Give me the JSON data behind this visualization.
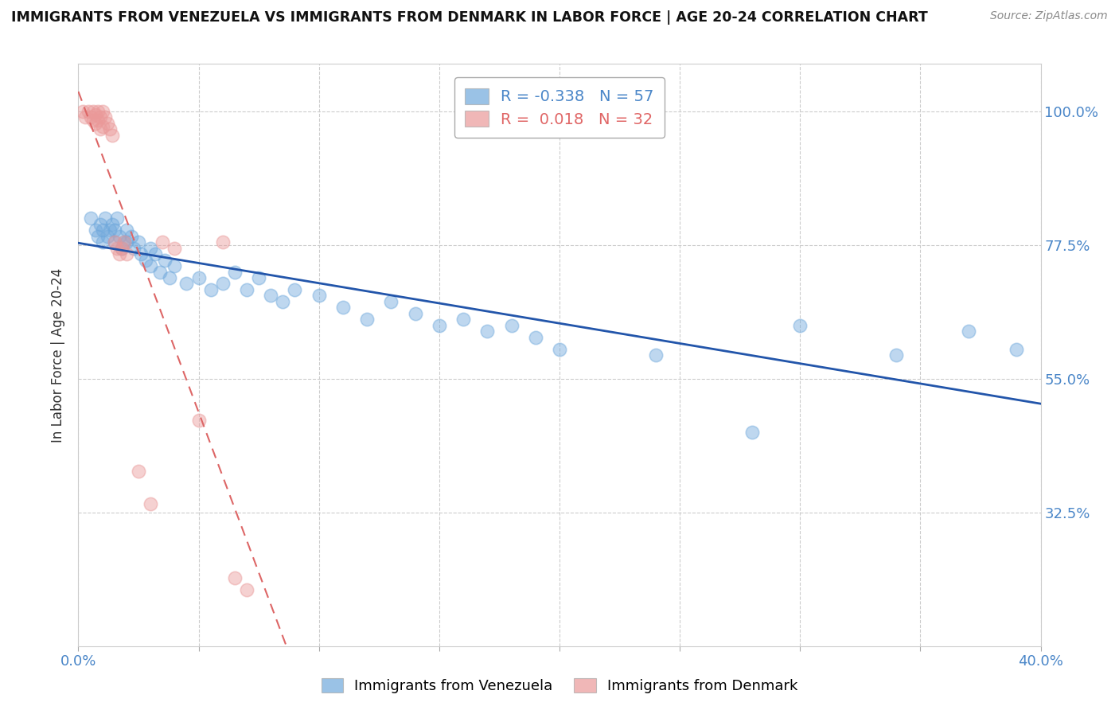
{
  "title": "IMMIGRANTS FROM VENEZUELA VS IMMIGRANTS FROM DENMARK IN LABOR FORCE | AGE 20-24 CORRELATION CHART",
  "source": "Source: ZipAtlas.com",
  "ylabel": "In Labor Force | Age 20-24",
  "xlim": [
    0.0,
    0.4
  ],
  "ylim": [
    0.1,
    1.08
  ],
  "xticks": [
    0.0,
    0.05,
    0.1,
    0.15,
    0.2,
    0.25,
    0.3,
    0.35,
    0.4
  ],
  "ytick_labels": [
    "32.5%",
    "55.0%",
    "77.5%",
    "100.0%"
  ],
  "yticks": [
    0.325,
    0.55,
    0.775,
    1.0
  ],
  "blue_color": "#6fa8dc",
  "pink_color": "#ea9999",
  "trend_blue": "#2255aa",
  "trend_pink": "#dd6666",
  "background": "#ffffff",
  "grid_color": "#cccccc",
  "blue_r": -0.338,
  "blue_n": 57,
  "pink_r": 0.018,
  "pink_n": 32,
  "blue_scatter_x": [
    0.005,
    0.007,
    0.008,
    0.009,
    0.01,
    0.01,
    0.011,
    0.012,
    0.013,
    0.014,
    0.015,
    0.015,
    0.016,
    0.017,
    0.018,
    0.019,
    0.02,
    0.02,
    0.022,
    0.023,
    0.025,
    0.026,
    0.028,
    0.03,
    0.03,
    0.032,
    0.034,
    0.036,
    0.038,
    0.04,
    0.045,
    0.05,
    0.055,
    0.06,
    0.065,
    0.07,
    0.075,
    0.08,
    0.085,
    0.09,
    0.1,
    0.11,
    0.12,
    0.13,
    0.14,
    0.15,
    0.16,
    0.17,
    0.18,
    0.19,
    0.2,
    0.24,
    0.28,
    0.3,
    0.34,
    0.37,
    0.39
  ],
  "blue_scatter_y": [
    0.82,
    0.8,
    0.79,
    0.81,
    0.8,
    0.78,
    0.82,
    0.79,
    0.8,
    0.81,
    0.78,
    0.8,
    0.82,
    0.79,
    0.77,
    0.78,
    0.8,
    0.78,
    0.79,
    0.77,
    0.78,
    0.76,
    0.75,
    0.77,
    0.74,
    0.76,
    0.73,
    0.75,
    0.72,
    0.74,
    0.71,
    0.72,
    0.7,
    0.71,
    0.73,
    0.7,
    0.72,
    0.69,
    0.68,
    0.7,
    0.69,
    0.67,
    0.65,
    0.68,
    0.66,
    0.64,
    0.65,
    0.63,
    0.64,
    0.62,
    0.6,
    0.59,
    0.46,
    0.64,
    0.59,
    0.63,
    0.6
  ],
  "pink_scatter_x": [
    0.002,
    0.003,
    0.004,
    0.005,
    0.006,
    0.006,
    0.007,
    0.007,
    0.008,
    0.008,
    0.009,
    0.009,
    0.01,
    0.01,
    0.011,
    0.012,
    0.013,
    0.014,
    0.015,
    0.016,
    0.017,
    0.018,
    0.019,
    0.02,
    0.025,
    0.03,
    0.035,
    0.04,
    0.05,
    0.06,
    0.065,
    0.07
  ],
  "pink_scatter_y": [
    1.0,
    0.99,
    1.0,
    0.99,
    1.0,
    0.985,
    0.995,
    0.98,
    1.0,
    0.985,
    0.99,
    0.97,
    1.0,
    0.975,
    0.99,
    0.98,
    0.97,
    0.96,
    0.78,
    0.77,
    0.76,
    0.77,
    0.78,
    0.76,
    0.395,
    0.34,
    0.78,
    0.77,
    0.48,
    0.78,
    0.215,
    0.195
  ]
}
